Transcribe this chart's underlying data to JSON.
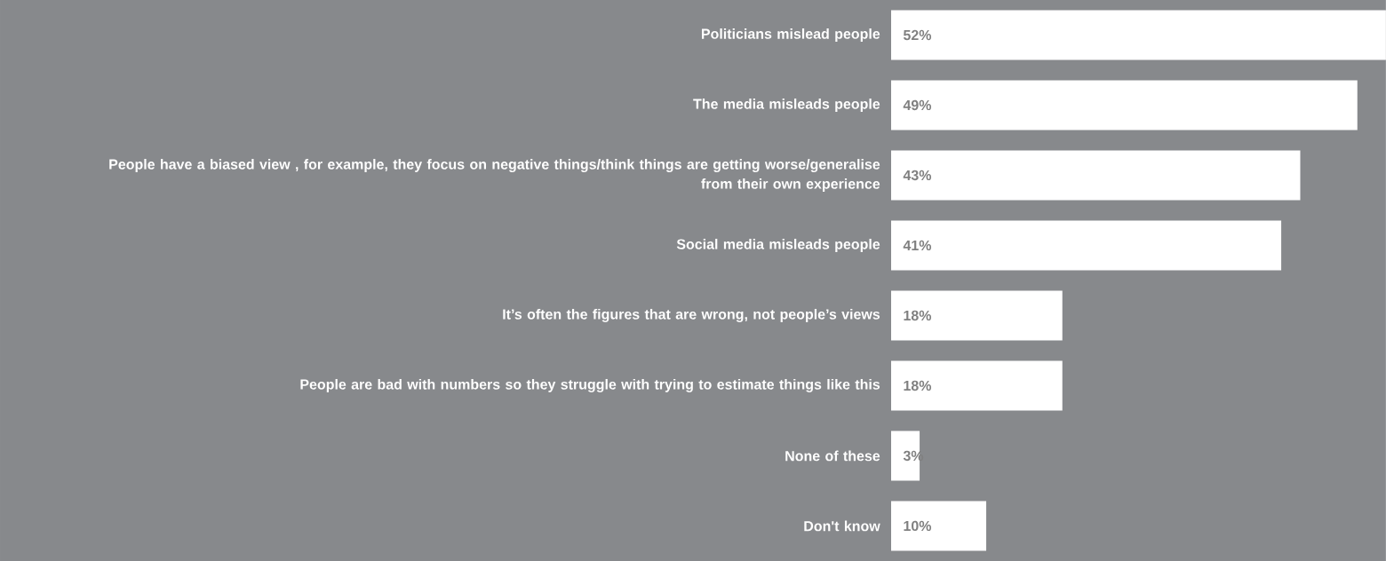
{
  "chart_data": {
    "type": "bar",
    "orientation": "horizontal",
    "categories": [
      "Politicians mislead people",
      "The media misleads people",
      "People have a biased view , for example, they focus on negative things/think things are getting worse/generalise from their own experience",
      "Social media misleads people",
      "It’s often the figures that are wrong, not people’s views",
      "People are bad with numbers so they struggle with trying to estimate things like this",
      "None of these",
      "Don't know"
    ],
    "values": [
      52,
      49,
      43,
      41,
      18,
      18,
      3,
      10
    ],
    "value_labels": [
      "52%",
      "49%",
      "43%",
      "41%",
      "18%",
      "18%",
      "3%",
      "10%"
    ],
    "color": "#ffffff"
  }
}
